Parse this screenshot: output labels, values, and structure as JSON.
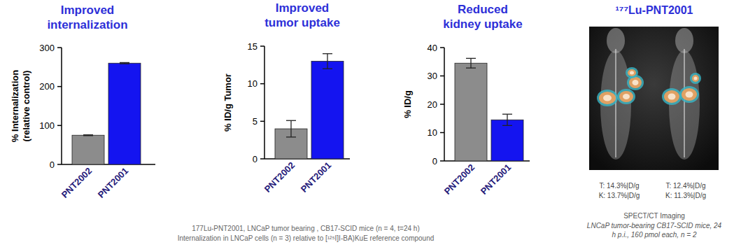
{
  "chart_data": [
    {
      "type": "bar",
      "title": "Improved\ninternalization",
      "y_label": "% Internalization\n(relative control)",
      "categories": [
        "PNT2002",
        "PNT2001"
      ],
      "values": [
        75,
        260
      ],
      "errors": [
        1,
        1.5
      ],
      "colors": [
        "#8c8c8c",
        "#1414f0"
      ],
      "ylim": [
        0,
        300
      ],
      "yticks": [
        0,
        100,
        200,
        300
      ]
    },
    {
      "type": "bar",
      "title": "Improved\ntumor uptake",
      "y_label": "% ID/g Tumor",
      "categories": [
        "PNT2002",
        "PNT2001"
      ],
      "values": [
        4.0,
        13.0
      ],
      "errors": [
        1.1,
        1.0
      ],
      "colors": [
        "#8c8c8c",
        "#1414f0"
      ],
      "ylim": [
        0,
        15
      ],
      "yticks": [
        0,
        5,
        10,
        15
      ]
    },
    {
      "type": "bar",
      "title": "Reduced\nkidney uptake",
      "y_label": "% ID/g",
      "categories": [
        "PNT2002",
        "PNT2001"
      ],
      "values": [
        34.5,
        14.5
      ],
      "errors": [
        1.7,
        2.0
      ],
      "colors": [
        "#8c8c8c",
        "#1414f0"
      ],
      "ylim": [
        0,
        40
      ],
      "yticks": [
        0,
        10,
        20,
        30,
        40
      ]
    }
  ],
  "image_panel": {
    "title": "¹⁷⁷Lu-PNT2001",
    "labels": [
      [
        "T: 14.3%|D/g",
        "K: 13.7%|D/g"
      ],
      [
        "T: 12.4%|D/g",
        "K: 11.3%|D/g"
      ]
    ],
    "caption": "SPECT/CT Imaging",
    "note": [
      "LNCaP tumor-bearing CB17-SCID mice, 24",
      "h p.i., 160 pmol each, n = 2"
    ]
  },
  "footnote": [
    "177Lu-PNT2001, LNCaP tumor bearing , CB17-SCID mice (n = 4, t=24 h)",
    "Internalization in LNCaP cells (n = 3) relative to [¹²⁵I]I-BA)KuE reference compound"
  ]
}
